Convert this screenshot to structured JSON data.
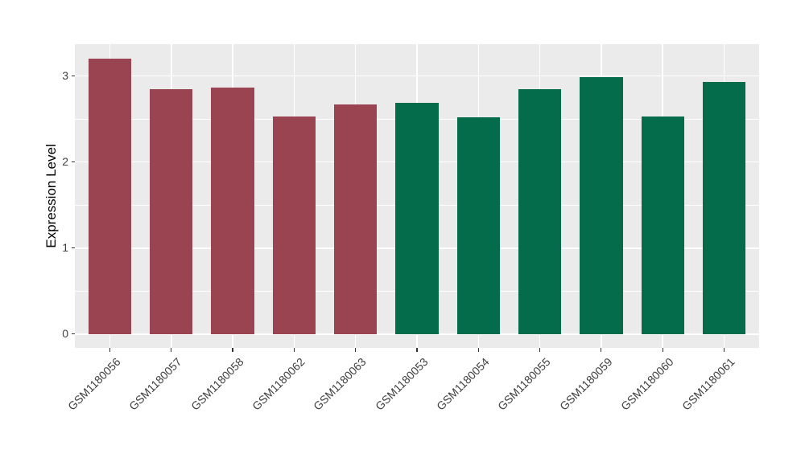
{
  "chart_data": {
    "type": "bar",
    "title": "",
    "xlabel": "",
    "ylabel": "Expression Level",
    "categories": [
      "GSM1180056",
      "GSM1180057",
      "GSM1180058",
      "GSM1180062",
      "GSM1180063",
      "GSM1180053",
      "GSM1180054",
      "GSM1180055",
      "GSM1180059",
      "GSM1180060",
      "GSM1180061"
    ],
    "values": [
      3.2,
      2.85,
      2.87,
      2.53,
      2.67,
      2.69,
      2.52,
      2.85,
      2.99,
      2.53,
      2.93
    ],
    "bar_colors": [
      "#9B4451",
      "#9B4451",
      "#9B4451",
      "#9B4451",
      "#9B4451",
      "#046B4B",
      "#046B4B",
      "#046B4B",
      "#046B4B",
      "#046B4B",
      "#046B4B"
    ],
    "yticks": [
      0,
      1,
      2,
      3
    ],
    "yticks_minor": [
      0.5,
      1.5,
      2.5
    ],
    "ylim": [
      -0.16,
      3.37
    ],
    "x_expand": 0.57,
    "bar_width_frac": 0.7,
    "grid": true,
    "legend": "none",
    "panel_bg": "#EBEBEB",
    "grid_color": "#FFFFFF",
    "axis_text_color": "#404040",
    "tick_color": "#333333"
  }
}
